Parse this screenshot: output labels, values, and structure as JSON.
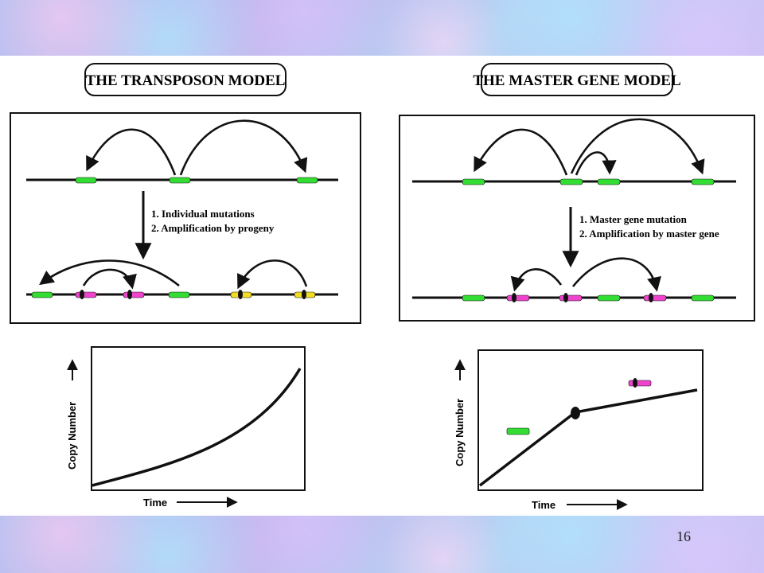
{
  "panels": {
    "left": {
      "title": "THE TRANSPOSON MODEL",
      "step1": "1. Individual mutations",
      "step2": "2. Amplification by progeny",
      "ylabel": "Copy Number",
      "xlabel": "Time"
    },
    "right": {
      "title": "THE MASTER GENE MODEL",
      "step1": "1. Master gene mutation",
      "step2": "2. Amplification by master gene",
      "ylabel": "Copy Number",
      "xlabel": "Time"
    }
  },
  "page_number": "16",
  "colors": {
    "green": "#33dd33",
    "magenta": "#ee44cc",
    "yellow": "#f2dd22",
    "background": "#b7c8ef"
  }
}
